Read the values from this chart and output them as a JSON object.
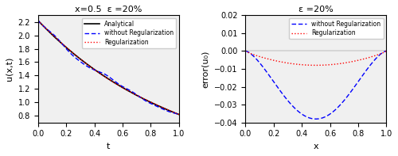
{
  "title_left": "x=0.5  ε =20%",
  "title_right": "ε =20%",
  "xlabel_left": "t",
  "xlabel_right": "x",
  "ylabel_left": "u(x,t)",
  "ylabel_right": "error(u₀)",
  "ylim_left": [
    0.7,
    2.3
  ],
  "ylim_right": [
    -0.04,
    0.02
  ],
  "xlim_left": [
    0,
    1
  ],
  "xlim_right": [
    0,
    1
  ],
  "yticks_left": [
    0.8,
    1.0,
    1.2,
    1.4,
    1.6,
    1.8,
    2.0,
    2.2
  ],
  "yticks_right": [
    -0.04,
    -0.03,
    -0.02,
    -0.01,
    0.0,
    0.01,
    0.02
  ],
  "xticks": [
    0,
    0.2,
    0.4,
    0.6,
    0.8,
    1.0
  ],
  "color_analytical": "#000000",
  "color_without_reg": "#0000FF",
  "color_reg": "#FF0000",
  "bg_color": "#f0f0f0",
  "n_points": 200
}
